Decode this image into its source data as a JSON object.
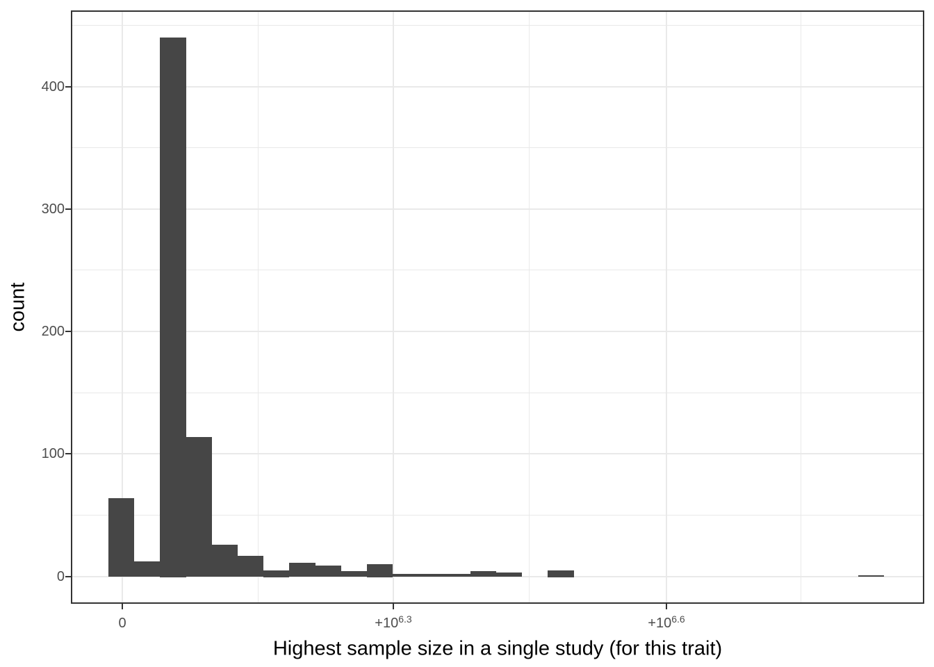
{
  "chart": {
    "xlabel": "Highest sample size in a single study (for this trait)",
    "ylabel": "count"
  },
  "chart_data": {
    "type": "bar",
    "subtype": "histogram",
    "title": "",
    "xlabel": "Highest sample size in a single study (for this trait)",
    "ylabel": "count",
    "x_axis": {
      "scale": "pseudo-log transformed sample size; major ticks evenly spaced",
      "major_ticks": [
        {
          "text": "0",
          "sup": ""
        },
        {
          "text": "+10",
          "sup": "6.3"
        },
        {
          "text": "+10",
          "sup": "6.6"
        }
      ]
    },
    "y_axis": {
      "label": "count",
      "major_ticks": [
        0,
        100,
        200,
        300,
        400
      ],
      "minor_ticks": [
        50,
        150,
        250,
        350,
        450
      ],
      "ylim": [
        0,
        462
      ],
      "grid": true
    },
    "bins": {
      "n": 30,
      "note": "uniform-width bins on the transformed x axis; first bin centered on tick 0"
    },
    "counts": [
      64,
      12,
      440,
      114,
      26,
      17,
      5,
      11,
      9,
      4,
      10,
      2,
      2,
      2,
      4,
      3,
      0,
      5,
      0,
      0,
      0,
      0,
      0,
      0,
      0,
      0,
      0,
      0,
      0,
      1
    ],
    "legend": "none",
    "colors": {
      "bar": "#464646",
      "grid": "#e9e9e9",
      "panel_border": "#333333",
      "tick_label": "#4d4d4d",
      "axis_title": "#000000",
      "background": "#ffffff"
    }
  }
}
